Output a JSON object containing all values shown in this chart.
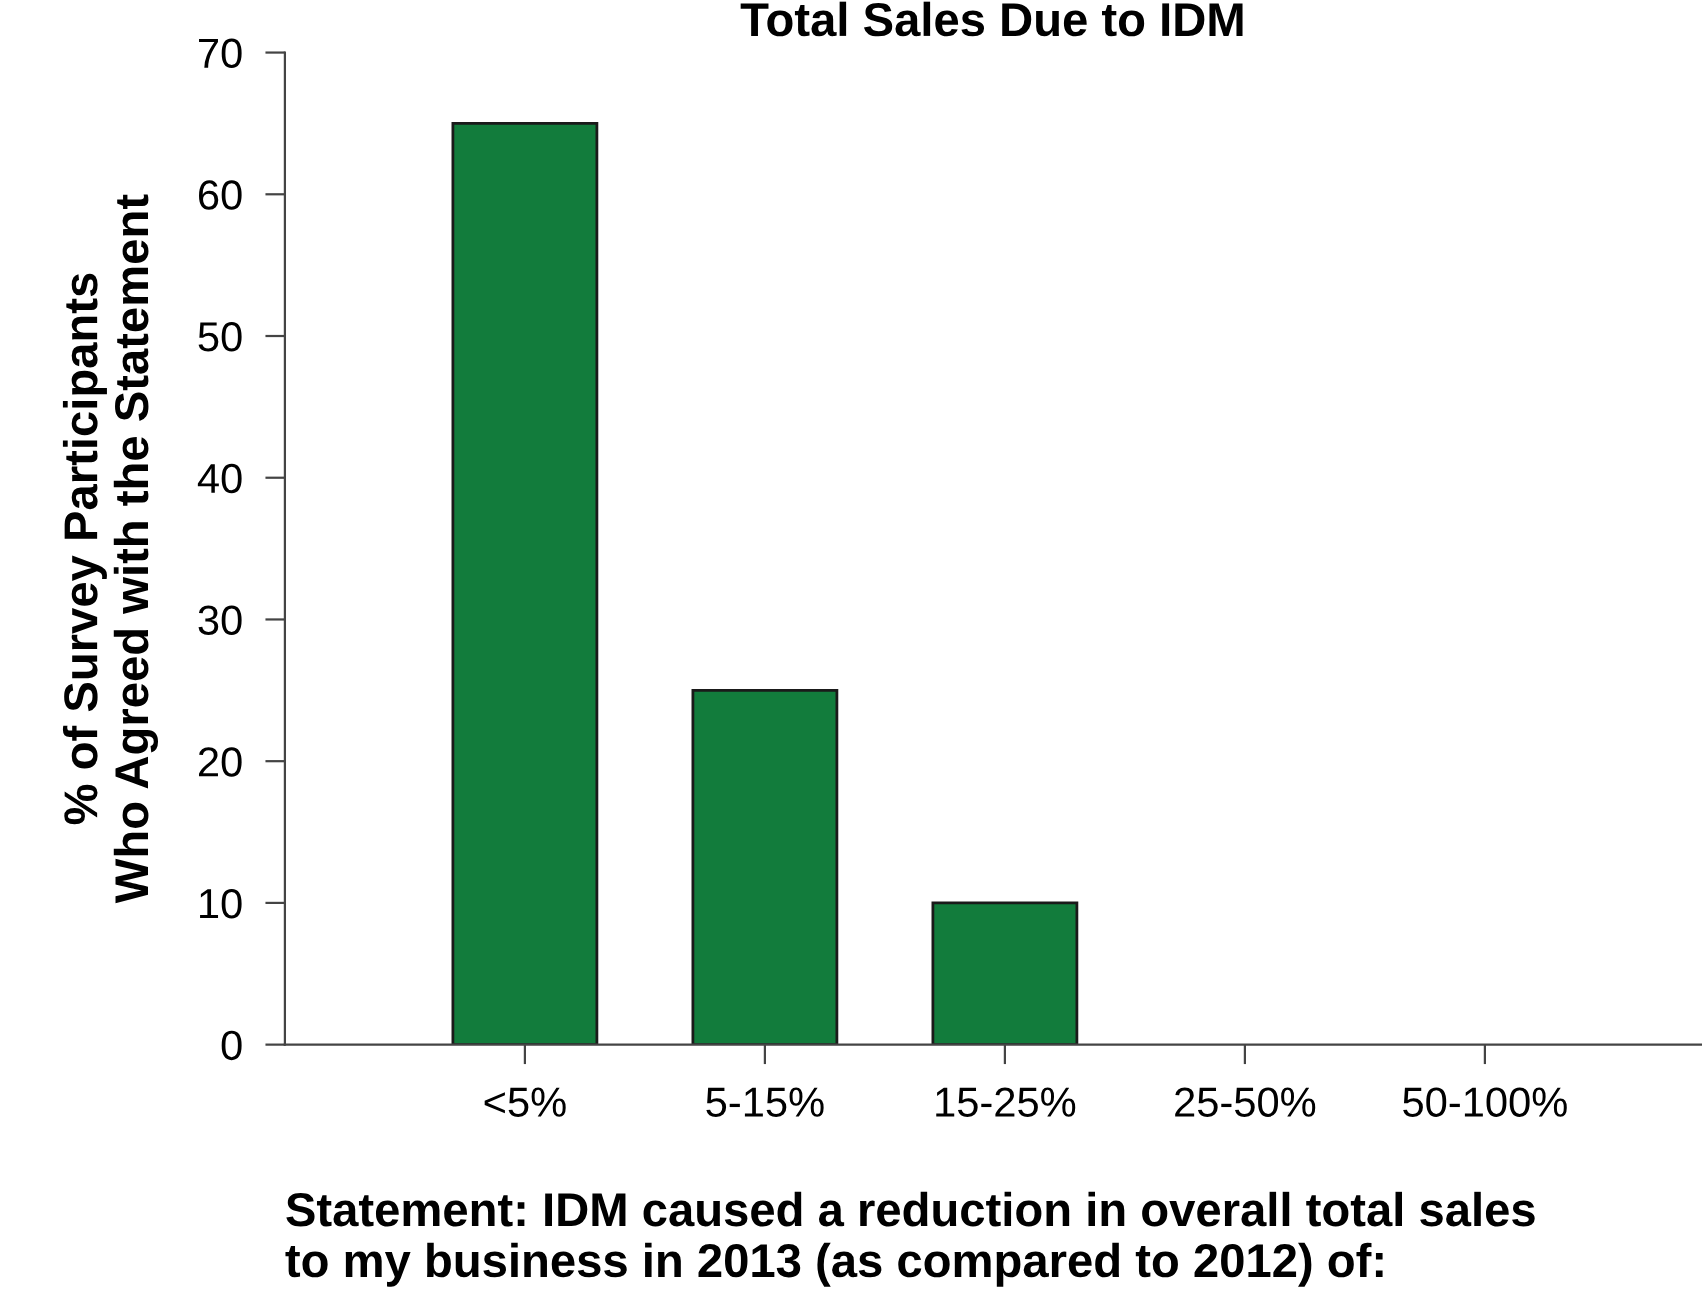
{
  "chart_data": {
    "type": "bar",
    "title": "Total Sales Due to IDM",
    "categories": [
      "<5%",
      "5-15%",
      "15-25%",
      "25-50%",
      "50-100%"
    ],
    "values": [
      65,
      25,
      10,
      0,
      0
    ],
    "color": "#127c3c",
    "ylabel": "% of Survey Participants\nWho Agreed with the Statement",
    "xlabel": "Statement: IDM caused a reduction in overall total sales\nto my business in 2013 (as compared to 2012) of:",
    "ylim": [
      0,
      70
    ],
    "yticks": [
      0,
      10,
      20,
      30,
      40,
      50,
      60,
      70
    ],
    "grid": false,
    "legend": false
  }
}
